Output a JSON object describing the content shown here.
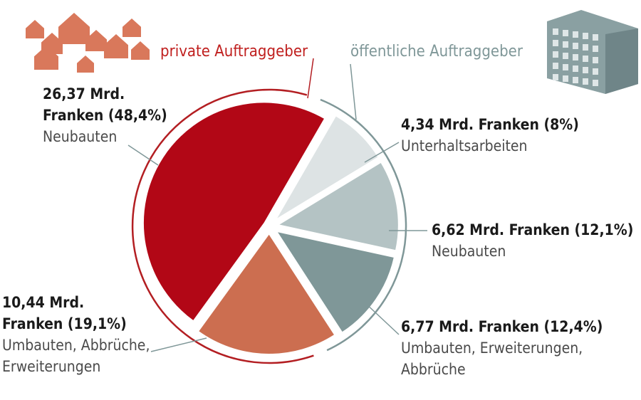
{
  "chart_data": {
    "type": "pie",
    "title": "",
    "unit": "Mrd. Franken",
    "groups": [
      {
        "name": "private Auftraggeber",
        "color": "#c8121a"
      },
      {
        "name": "öffentliche Auftraggeber",
        "color": "#8a9ea0"
      }
    ],
    "slices": [
      {
        "group": "private Auftraggeber",
        "value": 26.37,
        "percent": 48.4,
        "value_label": "26,37 Mrd. Franken (48,4%)",
        "value_line1": "26,37 Mrd.",
        "value_line2": "Franken (48,4%)",
        "category": "Neubauten",
        "color": "#b20716"
      },
      {
        "group": "private Auftraggeber",
        "value": 10.44,
        "percent": 19.1,
        "value_label": "10,44 Mrd. Franken (19,1%)",
        "value_line1": "10,44 Mrd.",
        "value_line2": "Franken (19,1%)",
        "category": "Umbauten, Abbrüche, Erweiterungen",
        "category_line1": "Umbauten, Abbrüche,",
        "category_line2": "Erweiterungen",
        "color": "#cc6e50"
      },
      {
        "group": "öffentliche Auftraggeber",
        "value": 6.77,
        "percent": 12.4,
        "value_label": "6,77 Mrd. Franken (12,4%)",
        "category": "Umbauten, Erweiterungen, Abbrüche",
        "category_line1": "Umbauten, Erweiterungen,",
        "category_line2": "Abbrüche",
        "color": "#7f9798"
      },
      {
        "group": "öffentliche Auftraggeber",
        "value": 6.62,
        "percent": 12.1,
        "value_label": "6,62 Mrd. Franken (12,1%)",
        "category": "Neubauten",
        "color": "#b4c3c4"
      },
      {
        "group": "öffentliche Auftraggeber",
        "value": 4.34,
        "percent": 8.0,
        "value_label": "4,34 Mrd. Franken (8%)",
        "category": "Unterhaltsarbeiten",
        "color": "#dde3e4"
      }
    ],
    "icons": [
      "houses-icon",
      "office-building-icon"
    ],
    "colors": {
      "ring": "#b31e22",
      "outline": "#7f9798",
      "houses": "#d9785b",
      "building": "#8aa0a2"
    }
  }
}
